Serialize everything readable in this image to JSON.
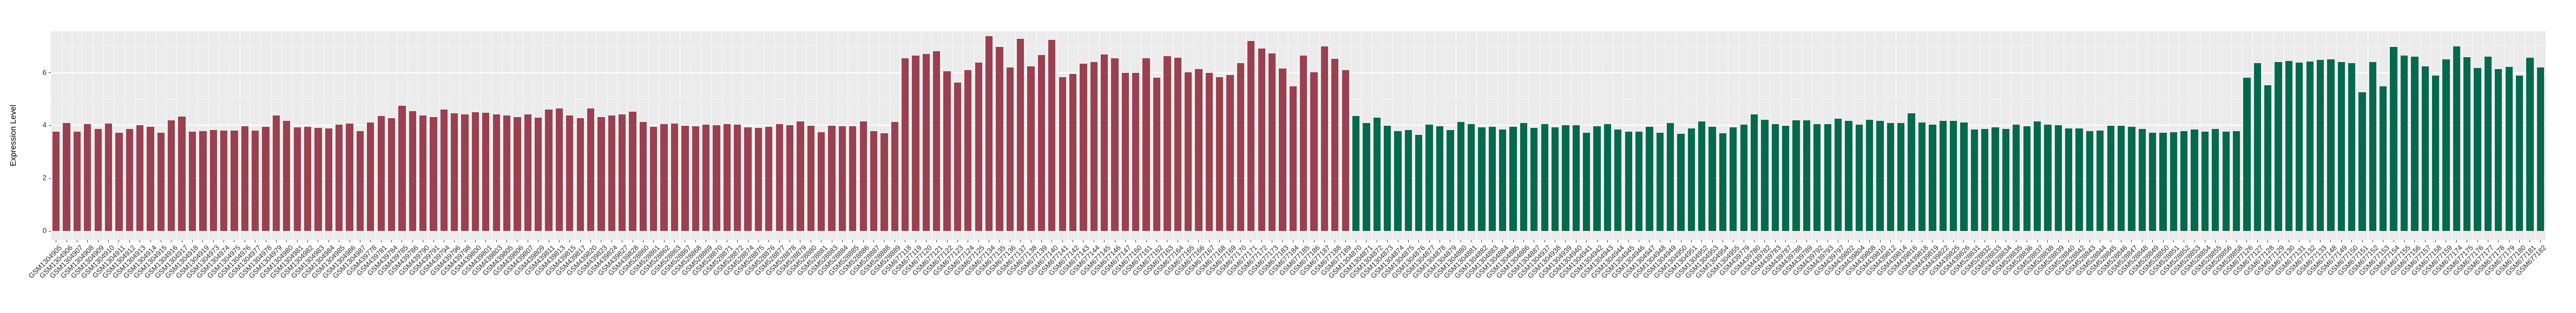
{
  "chart_data": {
    "type": "bar",
    "title": "",
    "xlabel": "",
    "ylabel": "Expression Level",
    "ylim": [
      0,
      7.6
    ],
    "yticks": [
      0,
      2,
      4,
      6
    ],
    "grid": "on",
    "legend_position": "none",
    "panel_background": "#EBEBEB",
    "grid_color": "#FFFFFF",
    "axis_text_color": "#333333",
    "series": [
      {
        "group": "group-1",
        "color": "#9B4050",
        "labels": [
          "GSM1304905",
          "GSM1304906",
          "GSM1304907",
          "GSM1304908",
          "GSM1304909",
          "GSM1304910",
          "GSM1304911",
          "GSM1304912",
          "GSM1304913",
          "GSM1304914",
          "GSM1304915",
          "GSM1304916",
          "GSM1304917",
          "GSM1304918",
          "GSM1304919",
          "GSM1304973",
          "GSM1304974",
          "GSM1304975",
          "GSM1304976",
          "GSM1304977",
          "GSM1304978",
          "GSM1304979",
          "GSM1304980",
          "GSM1304981",
          "GSM1304982",
          "GSM1304983",
          "GSM1304984",
          "GSM1304985",
          "GSM1304986",
          "GSM1304987",
          "GSM439778",
          "GSM439781",
          "GSM439784",
          "GSM439785",
          "GSM439786",
          "GSM439790",
          "GSM439791",
          "GSM439794",
          "GSM439796",
          "GSM439798",
          "GSM439800",
          "GSM439801",
          "GSM439803",
          "GSM439805",
          "GSM439806",
          "GSM439807",
          "GSM439809",
          "GSM439811",
          "GSM439813",
          "GSM439815",
          "GSM439817",
          "GSM439820",
          "GSM439823",
          "GSM439824",
          "GSM439827",
          "GSM439828",
          "GSM528860",
          "GSM528861",
          "GSM528862",
          "GSM528863",
          "GSM528867",
          "GSM528868",
          "GSM528869",
          "GSM528870",
          "GSM528871",
          "GSM528872",
          "GSM528874",
          "GSM528875",
          "GSM528876",
          "GSM528877",
          "GSM528878",
          "GSM528879",
          "GSM528880",
          "GSM528881",
          "GSM528883",
          "GSM528884",
          "GSM528885",
          "GSM528886",
          "GSM528887",
          "GSM528888",
          "GSM528889",
          "GSM677118",
          "GSM677119",
          "GSM677120",
          "GSM677121",
          "GSM677122",
          "GSM677123",
          "GSM677124",
          "GSM677125",
          "GSM677134",
          "GSM677135",
          "GSM677136",
          "GSM677137",
          "GSM677138",
          "GSM677139",
          "GSM677140",
          "GSM677141",
          "GSM677142",
          "GSM677143",
          "GSM677144",
          "GSM677145",
          "GSM677146",
          "GSM677147",
          "GSM677160",
          "GSM677161",
          "GSM677162",
          "GSM677163",
          "GSM677164",
          "GSM677165",
          "GSM677166",
          "GSM677167",
          "GSM677168",
          "GSM677169",
          "GSM677170",
          "GSM677171",
          "GSM677172",
          "GSM677173",
          "GSM677183",
          "GSM677184",
          "GSM677185",
          "GSM677186",
          "GSM677187",
          "GSM677188",
          "GSM677189"
        ],
        "values": [
          3.76,
          4.1,
          3.77,
          4.05,
          3.86,
          4.07,
          3.72,
          3.87,
          4.0,
          3.95,
          3.73,
          4.2,
          4.33,
          3.76,
          3.78,
          3.82,
          3.8,
          3.8,
          3.96,
          3.81,
          3.94,
          4.38,
          4.18,
          3.92,
          3.94,
          3.9,
          3.88,
          4.02,
          4.07,
          3.79,
          4.12,
          4.35,
          4.28,
          4.74,
          4.55,
          4.38,
          4.32,
          4.6,
          4.45,
          4.42,
          4.5,
          4.47,
          4.42,
          4.38,
          4.32,
          4.41,
          4.3,
          4.6,
          4.65,
          4.37,
          4.28,
          4.65,
          4.32,
          4.38,
          4.42,
          4.52,
          4.14,
          3.95,
          4.05,
          4.07,
          3.98,
          3.97,
          4.02,
          4.0,
          4.04,
          4.03,
          3.92,
          3.91,
          3.95,
          4.04,
          4.0,
          4.15,
          3.98,
          3.74,
          3.98,
          3.96,
          3.97,
          4.15,
          3.78,
          3.7,
          4.14,
          6.55,
          6.65,
          6.71,
          6.81,
          6.06,
          5.63,
          6.09,
          6.38,
          7.39,
          6.97,
          6.19,
          7.29,
          6.23,
          6.67,
          7.24,
          5.83,
          5.95,
          6.33,
          6.4,
          6.69,
          6.55,
          5.99,
          6.0,
          6.54,
          5.8,
          6.62,
          6.56,
          6.02,
          6.13,
          5.99,
          5.82,
          5.92,
          6.37,
          7.2,
          6.91,
          6.73,
          6.16,
          5.48,
          6.65,
          6.01,
          6.99,
          6.52,
          6.09
        ]
      },
      {
        "group": "group-2",
        "color": "#046A4D",
        "labels": [
          "GSM1304870",
          "GSM1304871",
          "GSM1304872",
          "GSM1304873",
          "GSM1304874",
          "GSM1304875",
          "GSM1304876",
          "GSM1304877",
          "GSM1304878",
          "GSM1304879",
          "GSM1304880",
          "GSM1304881",
          "GSM1304882",
          "GSM1304883",
          "GSM1304884",
          "GSM1304885",
          "GSM1304886",
          "GSM1304887",
          "GSM1304937",
          "GSM1304938",
          "GSM1304939",
          "GSM1304940",
          "GSM1304941",
          "GSM1304942",
          "GSM1304943",
          "GSM1304944",
          "GSM1304945",
          "GSM1304946",
          "GSM1304947",
          "GSM1304948",
          "GSM1304949",
          "GSM1304950",
          "GSM1304951",
          "GSM1304952",
          "GSM1304953",
          "GSM1304954",
          "GSM1304955",
          "GSM439779",
          "GSM439780",
          "GSM439782",
          "GSM439783",
          "GSM439787",
          "GSM439788",
          "GSM439789",
          "GSM439792",
          "GSM439793",
          "GSM439797",
          "GSM439802",
          "GSM439804",
          "GSM439808",
          "GSM439810",
          "GSM439812",
          "GSM439814",
          "GSM439816",
          "GSM439818",
          "GSM439819",
          "GSM439822",
          "GSM439825",
          "GSM439826",
          "GSM528831",
          "GSM528832",
          "GSM528833",
          "GSM528834",
          "GSM528835",
          "GSM528836",
          "GSM528837",
          "GSM528838",
          "GSM528839",
          "GSM528840",
          "GSM528842",
          "GSM528843",
          "GSM528844",
          "GSM528845",
          "GSM528846",
          "GSM528847",
          "GSM528848",
          "GSM528849",
          "GSM528850",
          "GSM528851",
          "GSM528852",
          "GSM528853",
          "GSM528854",
          "GSM528855",
          "GSM528856",
          "GSM528858",
          "GSM677126",
          "GSM677127",
          "GSM677128",
          "GSM677129",
          "GSM677130",
          "GSM677131",
          "GSM677132",
          "GSM677133",
          "GSM677148",
          "GSM677149",
          "GSM677150",
          "GSM677151",
          "GSM677152",
          "GSM677153",
          "GSM677154",
          "GSM677155",
          "GSM677156",
          "GSM677157",
          "GSM677158",
          "GSM677159",
          "GSM677174",
          "GSM677175",
          "GSM677176",
          "GSM677177",
          "GSM677178",
          "GSM677179",
          "GSM677180",
          "GSM677181",
          "GSM677182"
        ],
        "values": [
          4.35,
          4.1,
          4.3,
          3.99,
          3.78,
          3.82,
          3.64,
          4.03,
          3.96,
          3.82,
          4.14,
          4.05,
          3.92,
          3.95,
          3.85,
          3.94,
          4.1,
          3.9,
          4.05,
          3.92,
          4.0,
          4.0,
          3.72,
          3.97,
          4.05,
          3.84,
          3.76,
          3.76,
          3.94,
          3.73,
          4.08,
          3.68,
          3.88,
          4.15,
          3.95,
          3.7,
          3.92,
          4.02,
          4.42,
          4.22,
          4.05,
          3.98,
          4.2,
          4.2,
          4.04,
          4.04,
          4.25,
          4.18,
          4.02,
          4.22,
          4.18,
          4.08,
          4.08,
          4.45,
          4.12,
          4.02,
          4.18,
          4.18,
          4.12,
          3.85,
          3.87,
          3.92,
          3.86,
          4.02,
          3.97,
          4.15,
          4.02,
          4.0,
          3.88,
          3.89,
          3.78,
          3.8,
          3.99,
          3.98,
          3.95,
          3.87,
          3.72,
          3.72,
          3.75,
          3.78,
          3.84,
          3.76,
          3.86,
          3.77,
          3.78,
          5.81,
          6.35,
          5.52,
          6.4,
          6.45,
          6.38,
          6.42,
          6.48,
          6.5,
          6.4,
          6.35,
          5.25,
          6.4,
          5.48,
          6.97,
          6.65,
          6.61,
          6.24,
          5.88,
          6.5,
          6.99,
          6.59,
          6.18,
          6.61,
          6.14,
          6.21,
          5.88,
          6.56,
          6.2
        ]
      }
    ]
  }
}
